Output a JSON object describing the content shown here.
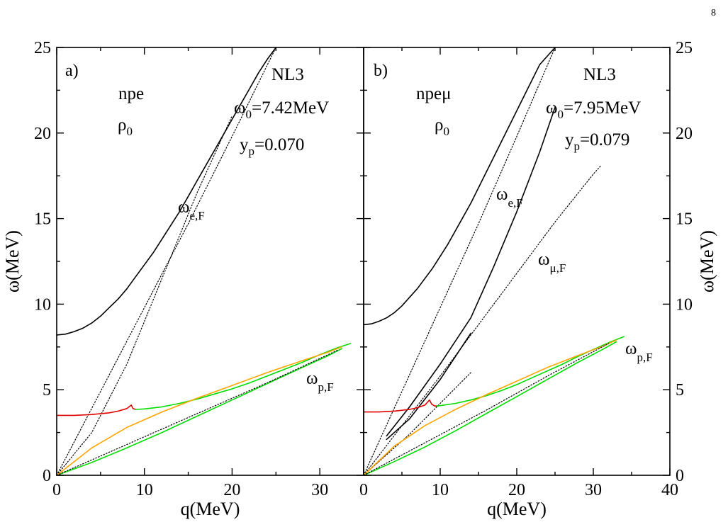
{
  "page_number": "8",
  "chart_data": [
    {
      "type": "line",
      "panel_label": "a)",
      "xlabel": "q(MeV)",
      "ylabel": "ω(MeV)",
      "xlim": [
        0,
        35
      ],
      "ylim": [
        0,
        25
      ],
      "xticks": [
        "0",
        "10",
        "20",
        "30"
      ],
      "yticks": [
        "0",
        "5",
        "10",
        "15",
        "20",
        "25"
      ],
      "annotations": {
        "system": "npe",
        "density": {
          "base": "ρ",
          "sub": "0"
        },
        "model": "NL3",
        "omega0": {
          "base": "ω",
          "sub": "0",
          "rest": "=7.42MeV"
        },
        "yp": {
          "base": "y",
          "sub": "p",
          "rest": "=0.070"
        },
        "omega_eF": {
          "base": "ω",
          "sub": "e,F"
        },
        "omega_pF": {
          "base": "ω",
          "sub": "p,F"
        }
      },
      "series": [
        {
          "color": "#000000",
          "style": "solid",
          "x": [
            0,
            1,
            2,
            3,
            4,
            5,
            6,
            7,
            8,
            9,
            10,
            11,
            12,
            13,
            14,
            15,
            16,
            17,
            18,
            19,
            20,
            21,
            22,
            23,
            24,
            25
          ],
          "y": [
            8.2,
            8.25,
            8.4,
            8.6,
            8.9,
            9.3,
            9.8,
            10.3,
            10.9,
            11.6,
            12.3,
            13.0,
            13.8,
            14.6,
            15.4,
            16.3,
            17.2,
            18.1,
            19.0,
            19.9,
            20.8,
            21.7,
            22.6,
            23.5,
            24.3,
            25.0
          ]
        },
        {
          "color": "#000000",
          "style": "dotted",
          "x": [
            0,
            5,
            10,
            15,
            20,
            25
          ],
          "y": [
            0,
            4.9,
            9.8,
            14.7,
            19.8,
            25.0
          ]
        },
        {
          "color": "#000000",
          "style": "dotted",
          "x": [
            0,
            4,
            8,
            12,
            16,
            20
          ],
          "y": [
            0,
            2.5,
            6.5,
            11.5,
            16.5,
            21.0
          ]
        },
        {
          "color": "#e00000",
          "style": "solid",
          "x": [
            0,
            2,
            4,
            6,
            7,
            8,
            8.5,
            8.7,
            9.0
          ],
          "y": [
            3.5,
            3.5,
            3.55,
            3.65,
            3.75,
            3.9,
            4.1,
            3.9,
            3.85
          ]
        },
        {
          "color": "#00dd00",
          "style": "solid",
          "x": [
            9,
            10,
            12,
            14,
            16,
            18,
            20,
            22,
            24,
            26,
            28,
            30,
            32,
            33.5
          ],
          "y": [
            3.85,
            3.88,
            4.0,
            4.2,
            4.45,
            4.75,
            5.05,
            5.4,
            5.8,
            6.2,
            6.6,
            7.05,
            7.45,
            7.7
          ]
        },
        {
          "color": "#00dd00",
          "style": "solid",
          "x": [
            0,
            4,
            8,
            12,
            16,
            20,
            24,
            28,
            31,
            32.5
          ],
          "y": [
            0,
            0.75,
            1.6,
            2.5,
            3.45,
            4.4,
            5.35,
            6.3,
            7.0,
            7.4
          ]
        },
        {
          "color": "#ffa500",
          "style": "solid",
          "x": [
            0,
            4,
            8,
            12,
            16,
            20,
            24,
            28,
            31,
            32.5
          ],
          "y": [
            0,
            1.6,
            2.8,
            3.7,
            4.5,
            5.25,
            6.0,
            6.7,
            7.2,
            7.5
          ]
        },
        {
          "color": "#000000",
          "style": "dotted",
          "x": [
            0,
            8,
            16,
            24,
            32
          ],
          "y": [
            0,
            1.8,
            3.6,
            5.4,
            7.3
          ]
        }
      ]
    },
    {
      "type": "line",
      "panel_label": "b)",
      "xlabel": "q(MeV)",
      "ylabel": "ω(MeV)",
      "xlim": [
        0,
        40
      ],
      "ylim": [
        0,
        25
      ],
      "xticks": [
        "0",
        "10",
        "20",
        "30",
        "40"
      ],
      "yticks": [
        "0",
        "5",
        "10",
        "15",
        "20",
        "25"
      ],
      "annotations": {
        "system": "npeμ",
        "density": {
          "base": "ρ",
          "sub": "0"
        },
        "model": "NL3",
        "omega0": {
          "base": "ω",
          "sub": "0",
          "rest": "=7.95MeV"
        },
        "yp": {
          "base": "y",
          "sub": "p",
          "rest": "=0.079"
        },
        "omega_eF": {
          "base": "ω",
          "sub": "e,F"
        },
        "omega_muF": {
          "base": "ω",
          "sub": "μ,F"
        },
        "omega_pF": {
          "base": "ω",
          "sub": "p,F"
        }
      },
      "series": [
        {
          "color": "#000000",
          "style": "solid",
          "x": [
            0,
            1,
            2,
            3,
            4,
            5,
            6,
            7,
            8,
            9,
            10,
            11,
            12,
            13,
            14,
            15,
            16,
            17,
            18,
            19,
            20,
            21,
            22,
            23,
            24,
            25
          ],
          "y": [
            8.8,
            8.85,
            9.0,
            9.2,
            9.5,
            9.9,
            10.4,
            10.9,
            11.5,
            12.1,
            12.8,
            13.5,
            14.3,
            15.1,
            15.9,
            16.8,
            17.7,
            18.6,
            19.5,
            20.4,
            21.3,
            22.2,
            23.1,
            24.0,
            24.5,
            25.0
          ]
        },
        {
          "color": "#000000",
          "style": "dotted",
          "x": [
            0,
            5,
            10,
            15,
            20,
            25
          ],
          "y": [
            0,
            4.9,
            9.8,
            14.7,
            19.8,
            25.0
          ]
        },
        {
          "color": "#000000",
          "style": "dotted",
          "x": [
            0,
            5,
            10,
            15,
            20,
            25,
            30,
            31
          ],
          "y": [
            0,
            2.9,
            5.8,
            8.8,
            11.8,
            14.8,
            17.6,
            18.1
          ]
        },
        {
          "color": "#000000",
          "style": "solid",
          "x": [
            3,
            6,
            10,
            14,
            17,
            20,
            23,
            25
          ],
          "y": [
            2.3,
            4.0,
            6.5,
            9.2,
            12.2,
            15.4,
            18.9,
            21.5
          ]
        },
        {
          "color": "#000000",
          "style": "solid",
          "x": [
            3,
            6,
            10,
            14
          ],
          "y": [
            2.1,
            3.3,
            5.6,
            8.3
          ]
        },
        {
          "color": "#000000",
          "style": "dotted",
          "x": [
            0,
            3,
            6,
            10,
            14
          ],
          "y": [
            0,
            1.2,
            2.4,
            4.2,
            6.0
          ]
        },
        {
          "color": "#e00000",
          "style": "solid",
          "x": [
            0,
            2,
            4,
            6,
            7,
            8,
            8.6,
            8.9,
            9.3,
            9.6
          ],
          "y": [
            3.7,
            3.7,
            3.75,
            3.85,
            3.95,
            4.1,
            4.4,
            4.15,
            4.05,
            4.05
          ]
        },
        {
          "color": "#00dd00",
          "style": "solid",
          "x": [
            9.6,
            10,
            12,
            14,
            16,
            18,
            20,
            22,
            24,
            26,
            28,
            30,
            32,
            34
          ],
          "y": [
            4.05,
            4.07,
            4.2,
            4.4,
            4.65,
            4.95,
            5.3,
            5.7,
            6.1,
            6.5,
            6.95,
            7.35,
            7.75,
            8.1
          ]
        },
        {
          "color": "#00dd00",
          "style": "solid",
          "x": [
            0,
            4,
            8,
            12,
            16,
            20,
            24,
            28,
            31,
            33
          ],
          "y": [
            0,
            0.8,
            1.65,
            2.6,
            3.6,
            4.6,
            5.6,
            6.6,
            7.3,
            7.8
          ]
        },
        {
          "color": "#ffa500",
          "style": "solid",
          "x": [
            0,
            4,
            8,
            12,
            16,
            20,
            24,
            28,
            31,
            33
          ],
          "y": [
            0,
            1.7,
            2.9,
            3.85,
            4.7,
            5.5,
            6.3,
            7.0,
            7.5,
            7.9
          ]
        },
        {
          "color": "#000000",
          "style": "dotted",
          "x": [
            0,
            8,
            16,
            24,
            32
          ],
          "y": [
            0,
            1.9,
            3.8,
            5.8,
            7.7
          ]
        }
      ]
    }
  ]
}
